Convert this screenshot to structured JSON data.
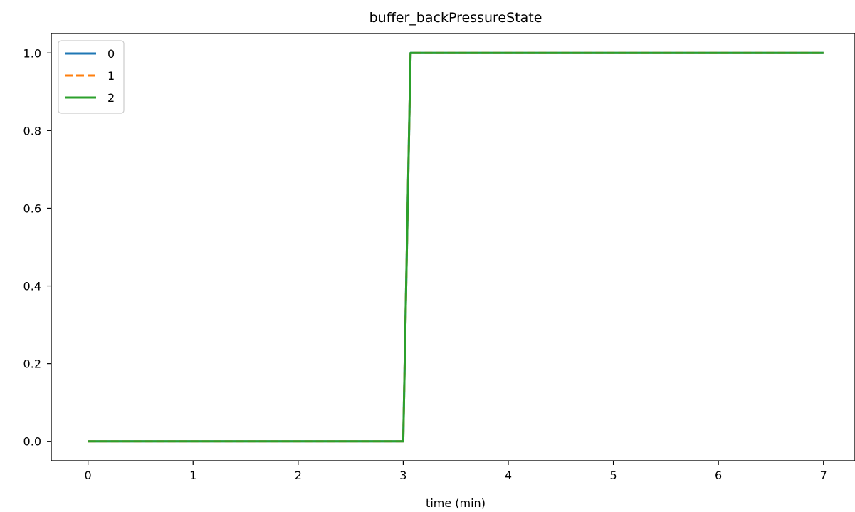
{
  "chart_data": {
    "type": "line",
    "title": "buffer_backPressureState",
    "xlabel": "time (min)",
    "ylabel": "",
    "xlim": [
      -0.35,
      7.3
    ],
    "ylim": [
      -0.05,
      1.05
    ],
    "xticks": [
      0,
      1,
      2,
      3,
      4,
      5,
      6,
      7
    ],
    "xtick_labels": [
      "0",
      "1",
      "2",
      "3",
      "4",
      "5",
      "6",
      "7"
    ],
    "yticks": [
      0.0,
      0.2,
      0.4,
      0.6,
      0.8,
      1.0
    ],
    "ytick_labels": [
      "0.0",
      "0.2",
      "0.4",
      "0.6",
      "0.8",
      "1.0"
    ],
    "grid": false,
    "legend_position": "top-left",
    "series": [
      {
        "name": "0",
        "color": "#1f77b4",
        "style": "solid",
        "x": [
          0,
          3.0,
          3.07,
          7
        ],
        "y": [
          0,
          0,
          1,
          1
        ]
      },
      {
        "name": "1",
        "color": "#ff7f0e",
        "style": "dashed",
        "x": [
          0,
          3.0,
          3.07,
          7
        ],
        "y": [
          0,
          0,
          1,
          1
        ]
      },
      {
        "name": "2",
        "color": "#2ca02c",
        "style": "solid",
        "x": [
          0,
          3.0,
          3.07,
          7
        ],
        "y": [
          0,
          0,
          1,
          1
        ]
      }
    ]
  }
}
